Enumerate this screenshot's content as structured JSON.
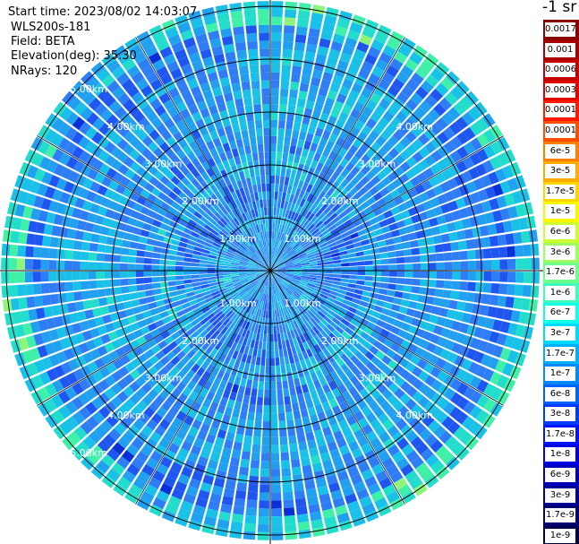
{
  "header": {
    "start_time": "Start time: 2023/08/02 14:03:07",
    "station": "WLS200s-181",
    "field": "Field: BETA",
    "elevation": "Elevation(deg): 35.30",
    "nrays": "NRays: 120"
  },
  "colorbar": {
    "unit_label": "-1 sr",
    "levels": [
      {
        "label": "0.0017",
        "color": "#8b0000"
      },
      {
        "label": "0.001",
        "color": "#a60000"
      },
      {
        "label": "0.0006",
        "color": "#c40000"
      },
      {
        "label": "0.0003",
        "color": "#e20000"
      },
      {
        "label": "0.00017",
        "color": "#ff1a00"
      },
      {
        "label": "0.0001",
        "color": "#ff4d00"
      },
      {
        "label": "6e-5",
        "color": "#ff7e00"
      },
      {
        "label": "3e-5",
        "color": "#ffab00"
      },
      {
        "label": "1.7e-5",
        "color": "#ffd500"
      },
      {
        "label": "1e-5",
        "color": "#f7f700"
      },
      {
        "label": "6e-6",
        "color": "#ccff33"
      },
      {
        "label": "3e-6",
        "color": "#9dff60"
      },
      {
        "label": "1.7e-6",
        "color": "#6dff8d"
      },
      {
        "label": "1e-6",
        "color": "#3dffbd"
      },
      {
        "label": "6e-7",
        "color": "#11ffe8"
      },
      {
        "label": "3e-7",
        "color": "#00d9ff"
      },
      {
        "label": "1.7e-7",
        "color": "#00b0ff"
      },
      {
        "label": "1e-7",
        "color": "#0089ff"
      },
      {
        "label": "6e-8",
        "color": "#0062ff"
      },
      {
        "label": "3e-8",
        "color": "#003bff"
      },
      {
        "label": "1.7e-8",
        "color": "#0014ff"
      },
      {
        "label": "1e-8",
        "color": "#0000e0"
      },
      {
        "label": "6e-9",
        "color": "#0000b8"
      },
      {
        "label": "3e-9",
        "color": "#000094"
      },
      {
        "label": "1.7e-9",
        "color": "#000070"
      },
      {
        "label": "1e-9",
        "color": "#00004a"
      }
    ]
  },
  "chart_data": {
    "type": "heatmap",
    "projection": "polar-ppi",
    "field": "BETA",
    "elevation_deg": 35.3,
    "n_rays": 120,
    "azimuth_range_deg": [
      0,
      360
    ],
    "range_km": [
      0,
      5.1
    ],
    "range_rings_km": [
      1,
      2,
      3,
      4,
      5
    ],
    "ring_labels": [
      "1.00km",
      "2.00km",
      "3.00km",
      "4.00km",
      "5.00km"
    ],
    "radial_spokes_deg": [
      0,
      30,
      60,
      90,
      120,
      150,
      180,
      210,
      240,
      270,
      300,
      330
    ],
    "bands": [
      {
        "range_km": [
          0.0,
          1.0
        ],
        "value": "6e-8 to 3e-7"
      },
      {
        "range_km": [
          1.0,
          2.5
        ],
        "value": "3e-8 to 3e-7"
      },
      {
        "range_km": [
          2.5,
          4.0
        ],
        "value": "6e-8 to 6e-7"
      },
      {
        "range_km": [
          4.0,
          4.6
        ],
        "value": "3e-8 to 3e-7"
      },
      {
        "range_km": [
          4.6,
          5.1
        ],
        "value": "3e-7 to 6e-6"
      }
    ]
  },
  "colors": {
    "ring_stroke": "#000000",
    "ray_gap": "#ffffff",
    "ring_label": "#ffffff"
  }
}
